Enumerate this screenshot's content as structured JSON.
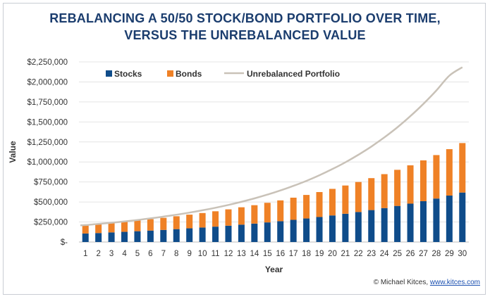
{
  "title_line1": "REBALANCING A 50/50 STOCK/BOND PORTFOLIO OVER TIME,",
  "title_line2": "VERSUS THE UNREBALANCED VALUE",
  "credit_prefix": "© Michael Kitces, ",
  "credit_link": "www.kitces.com",
  "colors": {
    "title": "#1b3d6e",
    "stocks": "#0f4c8a",
    "bonds": "#ef8126",
    "unrebalanced": "#c9c2b8",
    "axis_text": "#333333"
  },
  "chart_data": {
    "type": "bar",
    "stacked": true,
    "title": "REBALANCING A 50/50 STOCK/BOND PORTFOLIO OVER TIME, VERSUS THE UNREBALANCED VALUE",
    "xlabel": "Year",
    "ylabel": "Value",
    "ylim": [
      0,
      2250000
    ],
    "ytick_values": [
      0,
      250000,
      500000,
      750000,
      1000000,
      1250000,
      1500000,
      1750000,
      2000000,
      2250000
    ],
    "ytick_labels": [
      "$-",
      "$250,000",
      "$500,000",
      "$750,000",
      "$1,000,000",
      "$1,250,000",
      "$1,500,000",
      "$1,750,000",
      "$2,000,000",
      "$2,250,000"
    ],
    "categories": [
      "1",
      "2",
      "3",
      "4",
      "5",
      "6",
      "7",
      "8",
      "9",
      "10",
      "11",
      "12",
      "13",
      "14",
      "15",
      "16",
      "17",
      "18",
      "19",
      "20",
      "21",
      "22",
      "23",
      "24",
      "25",
      "26",
      "27",
      "28",
      "29",
      "30"
    ],
    "legend_position": "top-left",
    "series": [
      {
        "name": "Stocks",
        "kind": "bar",
        "values": [
          106000,
          112000,
          120000,
          127000,
          135000,
          143000,
          151000,
          161000,
          171000,
          181000,
          192000,
          204000,
          217000,
          230000,
          245000,
          260000,
          277000,
          294000,
          312000,
          332000,
          353000,
          375000,
          399000,
          424000,
          451000,
          479000,
          510000,
          543000,
          580000,
          618000
        ]
      },
      {
        "name": "Bonds",
        "kind": "bar",
        "values": [
          106000,
          112000,
          120000,
          127000,
          135000,
          143000,
          151000,
          161000,
          171000,
          181000,
          192000,
          204000,
          217000,
          230000,
          245000,
          260000,
          277000,
          294000,
          312000,
          332000,
          353000,
          375000,
          399000,
          424000,
          451000,
          479000,
          510000,
          543000,
          580000,
          618000
        ]
      },
      {
        "name": "Unrebalanced Portfolio",
        "kind": "line",
        "values": [
          212000,
          226000,
          241000,
          257000,
          275000,
          295000,
          317000,
          341000,
          367000,
          396000,
          428000,
          463000,
          502000,
          545000,
          592000,
          644000,
          701000,
          764000,
          834000,
          911000,
          996000,
          1090000,
          1193000,
          1307000,
          1433000,
          1572000,
          1725000,
          1893000,
          2079000,
          2183000
        ]
      }
    ]
  }
}
